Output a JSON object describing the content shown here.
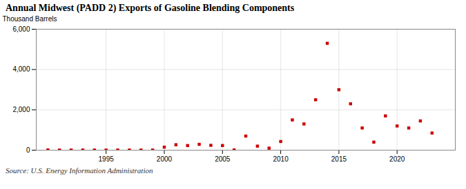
{
  "chart_data": {
    "type": "scatter",
    "title": "Annual Midwest (PADD 2) Exports of Gasoline Blending Components",
    "ylabel": "Thousand Barrels",
    "annotations": [
      "Source: U.S. Energy Information Administration"
    ],
    "x": [
      1990,
      1991,
      1992,
      1993,
      1994,
      1995,
      1996,
      1997,
      1998,
      1999,
      2000,
      2001,
      2002,
      2003,
      2004,
      2005,
      2006,
      2007,
      2008,
      2009,
      2010,
      2011,
      2012,
      2013,
      2014,
      2015,
      2016,
      2017,
      2018,
      2019,
      2020,
      2021,
      2022,
      2023
    ],
    "values": [
      10,
      5,
      5,
      5,
      5,
      5,
      5,
      5,
      5,
      5,
      150,
      270,
      230,
      290,
      240,
      230,
      10,
      700,
      200,
      100,
      430,
      1500,
      1300,
      2500,
      5300,
      3000,
      2300,
      1100,
      400,
      1700,
      1200,
      1100,
      1450,
      850
    ],
    "color": "#cc0000",
    "marker": "square",
    "xlim": [
      1989,
      2025
    ],
    "xticks": [
      1995,
      2000,
      2005,
      2010,
      2015,
      2020
    ],
    "ylim": [
      0,
      6000
    ],
    "yticks": [
      0,
      {
        "value": 2000,
        "label": "2,000"
      },
      {
        "value": 4000,
        "label": "4,000"
      },
      {
        "value": 6000,
        "label": "6,000"
      }
    ],
    "grid": true
  }
}
